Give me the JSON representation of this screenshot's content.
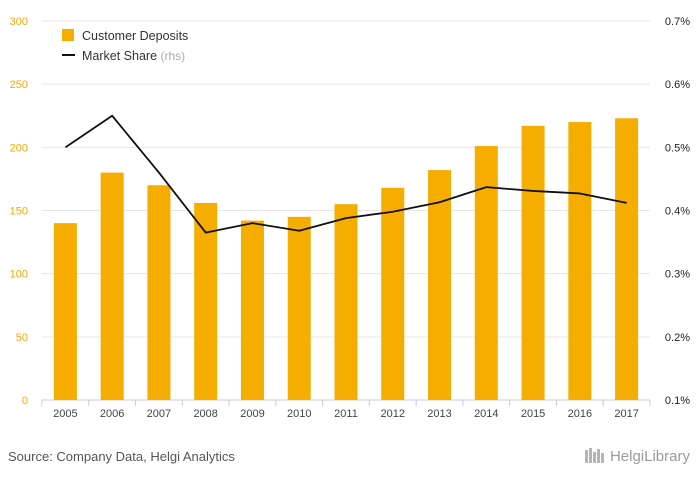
{
  "chart_data": {
    "type": "bar",
    "categories": [
      "2005",
      "2006",
      "2007",
      "2008",
      "2009",
      "2010",
      "2011",
      "2012",
      "2013",
      "2014",
      "2015",
      "2016",
      "2017"
    ],
    "series": [
      {
        "name": "Customer Deposits",
        "type": "bar",
        "axis": "left",
        "color": "#f5ad00",
        "values": [
          140,
          180,
          170,
          156,
          142,
          145,
          155,
          168,
          182,
          201,
          217,
          220,
          223
        ]
      },
      {
        "name": "Market Share",
        "name_suffix": "(rhs)",
        "type": "line",
        "axis": "right",
        "color": "#111111",
        "values": [
          0.5,
          0.55,
          0.46,
          0.365,
          0.38,
          0.368,
          0.388,
          0.398,
          0.413,
          0.437,
          0.431,
          0.427,
          0.412
        ]
      }
    ],
    "y_left": {
      "lim": [
        0,
        300
      ],
      "ticks": [
        "0",
        "50",
        "100",
        "150",
        "200",
        "250",
        "300"
      ],
      "color": "#f4a800"
    },
    "y_right": {
      "lim": [
        0.1,
        0.7
      ],
      "ticks": [
        "0.1%",
        "0.2%",
        "0.3%",
        "0.4%",
        "0.5%",
        "0.6%",
        "0.7%"
      ]
    },
    "grid": true,
    "legend_position": "top-left"
  },
  "footer": {
    "source": "Source: Company Data, Helgi Analytics",
    "brand": "HelgiLibrary"
  }
}
